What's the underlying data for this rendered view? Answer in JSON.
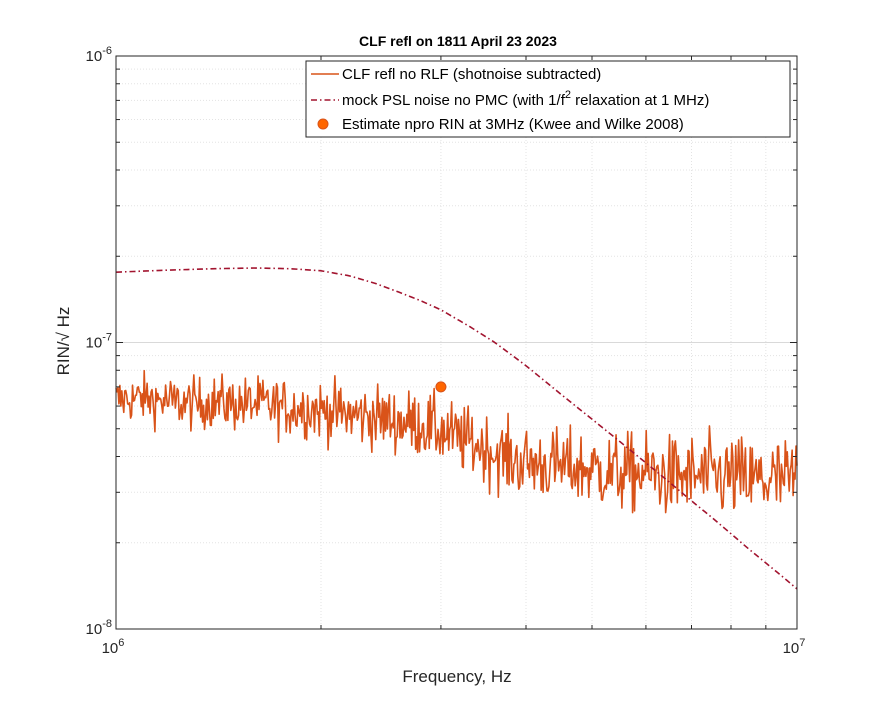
{
  "chart_data": {
    "type": "line",
    "title": "CLF refl on 1811 April 23 2023",
    "xlabel": "Frequency, Hz",
    "ylabel_prefix": "RIN/",
    "ylabel_sqrt": "√",
    "ylabel_suffix": " Hz",
    "xscale": "log",
    "yscale": "log",
    "xlim": [
      1000000,
      10000000
    ],
    "ylim": [
      1e-08,
      1e-06
    ],
    "grid": true,
    "minor_grid": true,
    "legend_position": "top-right",
    "x_tick_labels": [
      {
        "base": "10",
        "exp": "6"
      },
      {
        "base": "10",
        "exp": "7"
      }
    ],
    "y_tick_labels": [
      {
        "base": "10",
        "exp": "-8"
      },
      {
        "base": "10",
        "exp": "-7"
      },
      {
        "base": "10",
        "exp": "-6"
      }
    ],
    "series": [
      {
        "name": "CLF refl no RLF (shotnoise subtracted)",
        "color": "#D95319",
        "style": "solid",
        "x": [
          1000000,
          1100000,
          1200000,
          1300000,
          1400000,
          1500000,
          1600000,
          1700000,
          1800000,
          1900000,
          2000000,
          2200000,
          2400000,
          2600000,
          2800000,
          3000000,
          3200000,
          3400000,
          3600000,
          3800000,
          4000000,
          4500000,
          5000000,
          5500000,
          6000000,
          6500000,
          7000000,
          7500000,
          8000000,
          8500000,
          9000000,
          9500000,
          10000000
        ],
        "values": [
          6.3e-08,
          6.4e-08,
          6.2e-08,
          6.1e-08,
          6.2e-08,
          6.1e-08,
          6.1e-08,
          6e-08,
          5.9e-08,
          5.9e-08,
          5.8e-08,
          5.6e-08,
          5.5e-08,
          5.3e-08,
          5.2e-08,
          4.9e-08,
          4.6e-08,
          4.4e-08,
          4.1e-08,
          3.9e-08,
          3.8e-08,
          3.7e-08,
          3.6e-08,
          3.5e-08,
          3.5e-08,
          3.4e-08,
          3.4e-08,
          3.4e-08,
          3.4e-08,
          3.3e-08,
          3.3e-08,
          3.3e-08,
          3.3e-08
        ],
        "noise_amplitude": 0.08
      },
      {
        "name_prefix": "mock PSL noise no PMC (with 1/f",
        "name_sup": "2",
        "name_suffix": " relaxation at 1 MHz)",
        "color": "#A2142F",
        "style": "dash-dot",
        "x": [
          1000000,
          1200000,
          1400000,
          1600000,
          1800000,
          2000000,
          2200000,
          2400000,
          2600000,
          2800000,
          3000000,
          3300000,
          3600000,
          4000000,
          4500000,
          5000000,
          5500000,
          6000000,
          6500000,
          7000000,
          7500000,
          8000000,
          8500000,
          9000000,
          9500000,
          10000000
        ],
        "values": [
          1.76e-07,
          1.79e-07,
          1.81e-07,
          1.82e-07,
          1.81e-07,
          1.78e-07,
          1.71e-07,
          1.61e-07,
          1.5e-07,
          1.4e-07,
          1.3e-07,
          1.14e-07,
          1e-07,
          8.3e-08,
          6.6e-08,
          5.4e-08,
          4.5e-08,
          3.8e-08,
          3.25e-08,
          2.8e-08,
          2.45e-08,
          2.15e-08,
          1.9e-08,
          1.7e-08,
          1.53e-08,
          1.38e-08
        ]
      },
      {
        "name": "Estimate npro RIN at 3MHz (Kwee and Wilke 2008)",
        "color": "#FF6600",
        "edge_color": "#D95319",
        "style": "marker",
        "x": [
          3000000
        ],
        "values": [
          7e-08
        ]
      }
    ]
  }
}
